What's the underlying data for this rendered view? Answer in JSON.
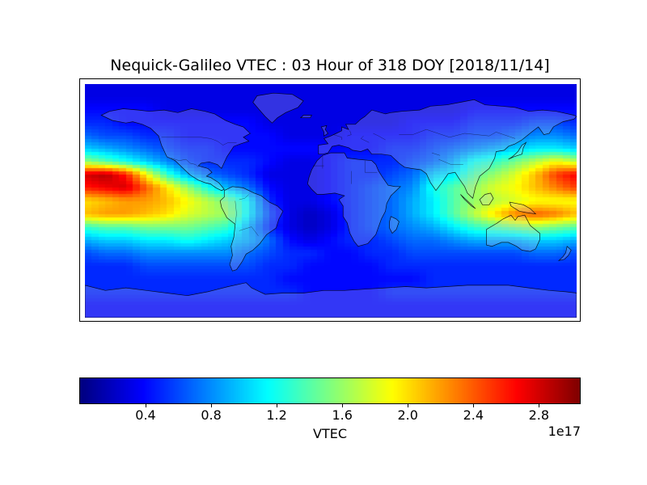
{
  "chart_data": {
    "type": "heatmap",
    "title": "Nequick-Galileo VTEC : 03 Hour of 318 DOY [2018/11/14]",
    "projection": "equirectangular-world-map",
    "colormap": "jet",
    "vmin": 0.0,
    "vmax": 3.05,
    "value_units": "1e17 electrons/m^2 (VTEC)",
    "grid_note": "values sampled on lon x lat grid, units of 1e17",
    "lon": [
      -180,
      -165,
      -150,
      -135,
      -120,
      -105,
      -90,
      -75,
      -60,
      -45,
      -30,
      -15,
      0,
      15,
      30,
      45,
      60,
      75,
      90,
      105,
      120,
      135,
      150,
      165,
      180
    ],
    "lat": [
      90,
      80,
      70,
      60,
      50,
      40,
      30,
      20,
      10,
      0,
      -10,
      -20,
      -30,
      -40,
      -50,
      -60,
      -70,
      -80,
      -90
    ],
    "values": [
      [
        0.3,
        0.3,
        0.3,
        0.3,
        0.3,
        0.3,
        0.3,
        0.3,
        0.3,
        0.3,
        0.3,
        0.3,
        0.3,
        0.3,
        0.3,
        0.3,
        0.3,
        0.3,
        0.3,
        0.3,
        0.3,
        0.3,
        0.3,
        0.3,
        0.3
      ],
      [
        0.3,
        0.3,
        0.3,
        0.3,
        0.3,
        0.3,
        0.3,
        0.3,
        0.3,
        0.3,
        0.3,
        0.3,
        0.3,
        0.3,
        0.3,
        0.3,
        0.3,
        0.3,
        0.3,
        0.3,
        0.3,
        0.3,
        0.3,
        0.3,
        0.3
      ],
      [
        0.4,
        0.4,
        0.4,
        0.4,
        0.3,
        0.3,
        0.3,
        0.3,
        0.3,
        0.3,
        0.3,
        0.3,
        0.3,
        0.3,
        0.3,
        0.3,
        0.3,
        0.3,
        0.3,
        0.4,
        0.4,
        0.4,
        0.4,
        0.4,
        0.4
      ],
      [
        0.5,
        0.5,
        0.4,
        0.4,
        0.4,
        0.4,
        0.4,
        0.4,
        0.4,
        0.3,
        0.3,
        0.3,
        0.3,
        0.3,
        0.3,
        0.3,
        0.4,
        0.4,
        0.4,
        0.5,
        0.5,
        0.5,
        0.6,
        0.6,
        0.5
      ],
      [
        0.7,
        0.6,
        0.6,
        0.5,
        0.5,
        0.4,
        0.4,
        0.4,
        0.4,
        0.4,
        0.3,
        0.3,
        0.3,
        0.4,
        0.4,
        0.4,
        0.4,
        0.5,
        0.5,
        0.6,
        0.6,
        0.7,
        0.8,
        0.8,
        0.7
      ],
      [
        1.0,
        0.9,
        0.8,
        0.7,
        0.6,
        0.5,
        0.5,
        0.4,
        0.4,
        0.4,
        0.4,
        0.4,
        0.4,
        0.4,
        0.4,
        0.5,
        0.5,
        0.6,
        0.7,
        0.8,
        0.9,
        1.0,
        1.1,
        1.1,
        1.0
      ],
      [
        1.6,
        1.4,
        1.2,
        1.0,
        0.8,
        0.6,
        0.5,
        0.5,
        0.5,
        0.4,
        0.3,
        0.3,
        0.4,
        0.5,
        0.5,
        0.5,
        0.6,
        0.7,
        0.9,
        1.2,
        1.3,
        1.5,
        1.7,
        1.9,
        1.7
      ],
      [
        2.8,
        2.9,
        2.6,
        1.9,
        1.3,
        0.9,
        0.7,
        0.6,
        0.5,
        0.3,
        0.3,
        0.3,
        0.4,
        0.5,
        0.5,
        0.6,
        0.7,
        1.0,
        1.1,
        1.4,
        1.6,
        1.8,
        2.1,
        2.5,
        2.7
      ],
      [
        2.6,
        2.7,
        2.8,
        2.4,
        2.0,
        1.6,
        1.2,
        0.9,
        0.7,
        0.4,
        0.3,
        0.3,
        0.4,
        0.5,
        0.6,
        0.7,
        0.8,
        1.2,
        1.4,
        1.6,
        1.8,
        1.9,
        2.1,
        2.3,
        2.5
      ],
      [
        2.0,
        2.1,
        2.2,
        2.2,
        2.1,
        1.9,
        1.7,
        1.5,
        1.1,
        0.5,
        0.3,
        0.3,
        0.4,
        0.5,
        0.6,
        0.7,
        0.9,
        1.1,
        1.4,
        1.6,
        1.7,
        1.8,
        1.9,
        1.9,
        1.9
      ],
      [
        2.1,
        2.2,
        2.2,
        2.1,
        2.0,
        1.8,
        1.7,
        1.6,
        1.1,
        0.6,
        0.3,
        0.2,
        0.3,
        0.5,
        0.6,
        0.7,
        0.9,
        1.1,
        1.4,
        1.7,
        2.0,
        2.3,
        2.4,
        2.3,
        2.1
      ],
      [
        1.3,
        1.4,
        1.4,
        1.5,
        1.5,
        1.5,
        1.4,
        1.3,
        0.9,
        0.5,
        0.3,
        0.2,
        0.3,
        0.5,
        0.6,
        0.7,
        0.8,
        0.9,
        1.1,
        1.3,
        1.4,
        1.5,
        1.6,
        1.5,
        1.4
      ],
      [
        0.9,
        1.0,
        1.0,
        1.1,
        1.1,
        1.2,
        1.1,
        1.0,
        0.9,
        0.7,
        0.4,
        0.3,
        0.4,
        0.5,
        0.5,
        0.6,
        0.7,
        0.7,
        0.8,
        0.9,
        0.9,
        0.9,
        1.0,
        1.0,
        0.9
      ],
      [
        0.6,
        0.7,
        0.7,
        0.8,
        0.8,
        0.8,
        0.8,
        0.8,
        0.7,
        0.6,
        0.5,
        0.5,
        0.4,
        0.4,
        0.5,
        0.5,
        0.6,
        0.6,
        0.6,
        0.6,
        0.6,
        0.6,
        0.7,
        0.7,
        0.6
      ],
      [
        0.5,
        0.5,
        0.5,
        0.6,
        0.6,
        0.6,
        0.6,
        0.6,
        0.6,
        0.5,
        0.5,
        0.4,
        0.4,
        0.4,
        0.4,
        0.5,
        0.5,
        0.5,
        0.5,
        0.5,
        0.5,
        0.5,
        0.5,
        0.5,
        0.5
      ],
      [
        0.5,
        0.5,
        0.5,
        0.5,
        0.5,
        0.5,
        0.5,
        0.5,
        0.5,
        0.5,
        0.4,
        0.4,
        0.4,
        0.4,
        0.4,
        0.4,
        0.4,
        0.5,
        0.5,
        0.5,
        0.5,
        0.5,
        0.5,
        0.5,
        0.5
      ],
      [
        0.5,
        0.5,
        0.5,
        0.5,
        0.5,
        0.5,
        0.5,
        0.5,
        0.5,
        0.5,
        0.5,
        0.4,
        0.4,
        0.4,
        0.4,
        0.5,
        0.5,
        0.5,
        0.5,
        0.5,
        0.5,
        0.5,
        0.5,
        0.5,
        0.5
      ],
      [
        0.4,
        0.4,
        0.4,
        0.4,
        0.4,
        0.4,
        0.4,
        0.4,
        0.4,
        0.4,
        0.4,
        0.4,
        0.4,
        0.4,
        0.4,
        0.4,
        0.4,
        0.4,
        0.4,
        0.4,
        0.4,
        0.4,
        0.4,
        0.4,
        0.4
      ],
      [
        0.4,
        0.4,
        0.4,
        0.4,
        0.4,
        0.4,
        0.4,
        0.4,
        0.4,
        0.4,
        0.4,
        0.4,
        0.4,
        0.4,
        0.4,
        0.4,
        0.4,
        0.4,
        0.4,
        0.4,
        0.4,
        0.4,
        0.4,
        0.4,
        0.4
      ]
    ],
    "colorbar": {
      "label": "VTEC",
      "scale_label": "1e17",
      "ticks": [
        0.4,
        0.8,
        1.2,
        1.6,
        2.0,
        2.4,
        2.8
      ],
      "orientation": "horizontal"
    },
    "layout": {
      "background": "#ffffff",
      "frame_color": "#000000",
      "gridlines": false,
      "legend": false
    }
  }
}
